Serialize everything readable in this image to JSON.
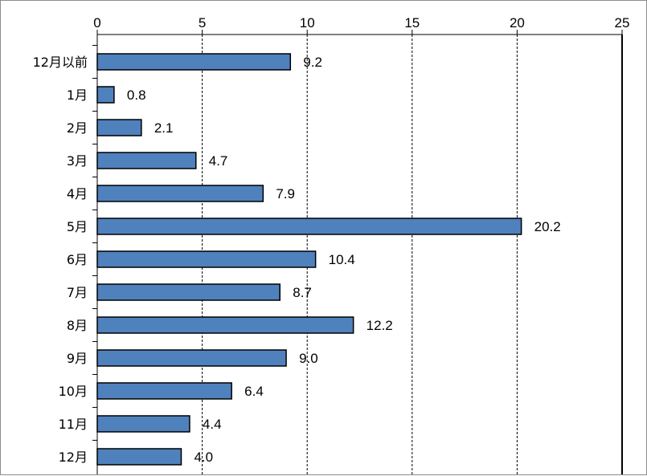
{
  "chart_data": {
    "type": "bar",
    "orientation": "horizontal",
    "categories": [
      "12月以前",
      "1月",
      "2月",
      "3月",
      "4月",
      "5月",
      "6月",
      "7月",
      "8月",
      "9月",
      "10月",
      "11月",
      "12月"
    ],
    "values": [
      9.2,
      0.8,
      2.1,
      4.7,
      7.9,
      20.2,
      10.4,
      8.7,
      12.2,
      9.0,
      6.4,
      4.4,
      4.0
    ],
    "value_labels": [
      "9.2",
      "0.8",
      "2.1",
      "4.7",
      "7.9",
      "20.2",
      "10.4",
      "8.7",
      "12.2",
      "9.0",
      "6.4",
      "4.4",
      "4.0"
    ],
    "xlim": [
      0,
      25
    ],
    "xticks": [
      0,
      5,
      10,
      15,
      20,
      25
    ],
    "xtick_labels": [
      "0",
      "5",
      "10",
      "15",
      "20",
      "25"
    ],
    "x_axis_position": "top",
    "grid": "vertical dashed",
    "bar_color": "#4f81bd",
    "bar_edge_color": "#000000",
    "title": "",
    "xlabel": "",
    "ylabel": "",
    "legend": "none"
  }
}
